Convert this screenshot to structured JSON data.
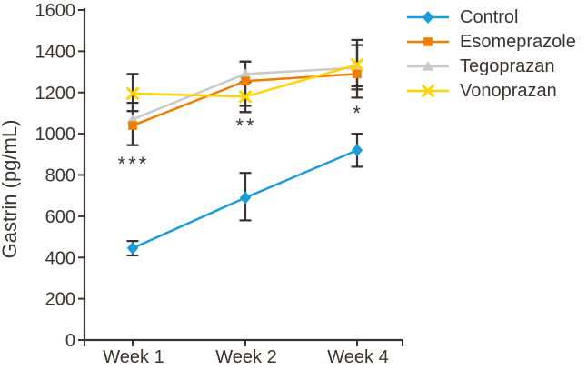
{
  "figure": {
    "background": "#ffffff",
    "text_color": "#3a3331",
    "axis_color": "#3a3331",
    "error_bar_color": "#3a3331"
  },
  "chart_data": {
    "type": "line",
    "title": "",
    "xlabel": "",
    "ylabel": "Gastrin (pg/mL)",
    "categories": [
      "Week 1",
      "Week 2",
      "Week 4"
    ],
    "ylim": [
      0,
      1600
    ],
    "yticks": [
      0,
      200,
      400,
      600,
      800,
      1000,
      1200,
      1400,
      1600
    ],
    "grid": false,
    "legend_position": "top-right",
    "error_bars": true,
    "series": [
      {
        "name": "Control",
        "color": "#1b9cd8",
        "marker": "diamond",
        "values": [
          445,
          690,
          920
        ],
        "err_lo": [
          410,
          580,
          840
        ],
        "err_hi": [
          480,
          810,
          1000
        ]
      },
      {
        "name": "Esomeprazole",
        "color": "#ee7d00",
        "marker": "square",
        "values": [
          1040,
          1255,
          1290
        ],
        "err_lo": [
          945,
          1105,
          1175
        ],
        "err_hi": [
          1110,
          1350,
          1430
        ]
      },
      {
        "name": "Tegoprazan",
        "color": "#c9c9ca",
        "marker": "triangle",
        "values": [
          1070,
          1290,
          1320
        ],
        "err_lo": [
          945,
          1135,
          1215
        ],
        "err_hi": [
          1150,
          1350,
          1455
        ]
      },
      {
        "name": "Vonoprazan",
        "color": "#ffd400",
        "marker": "x",
        "values": [
          1195,
          1180,
          1335
        ],
        "err_lo": [
          1110,
          1105,
          1230
        ],
        "err_hi": [
          1290,
          1250,
          1430
        ]
      }
    ],
    "annotations": [
      {
        "text": "***",
        "category_index": 0,
        "y": 868
      },
      {
        "text": "**",
        "category_index": 1,
        "y": 1053
      },
      {
        "text": "*",
        "category_index": 2,
        "y": 1115
      }
    ]
  }
}
